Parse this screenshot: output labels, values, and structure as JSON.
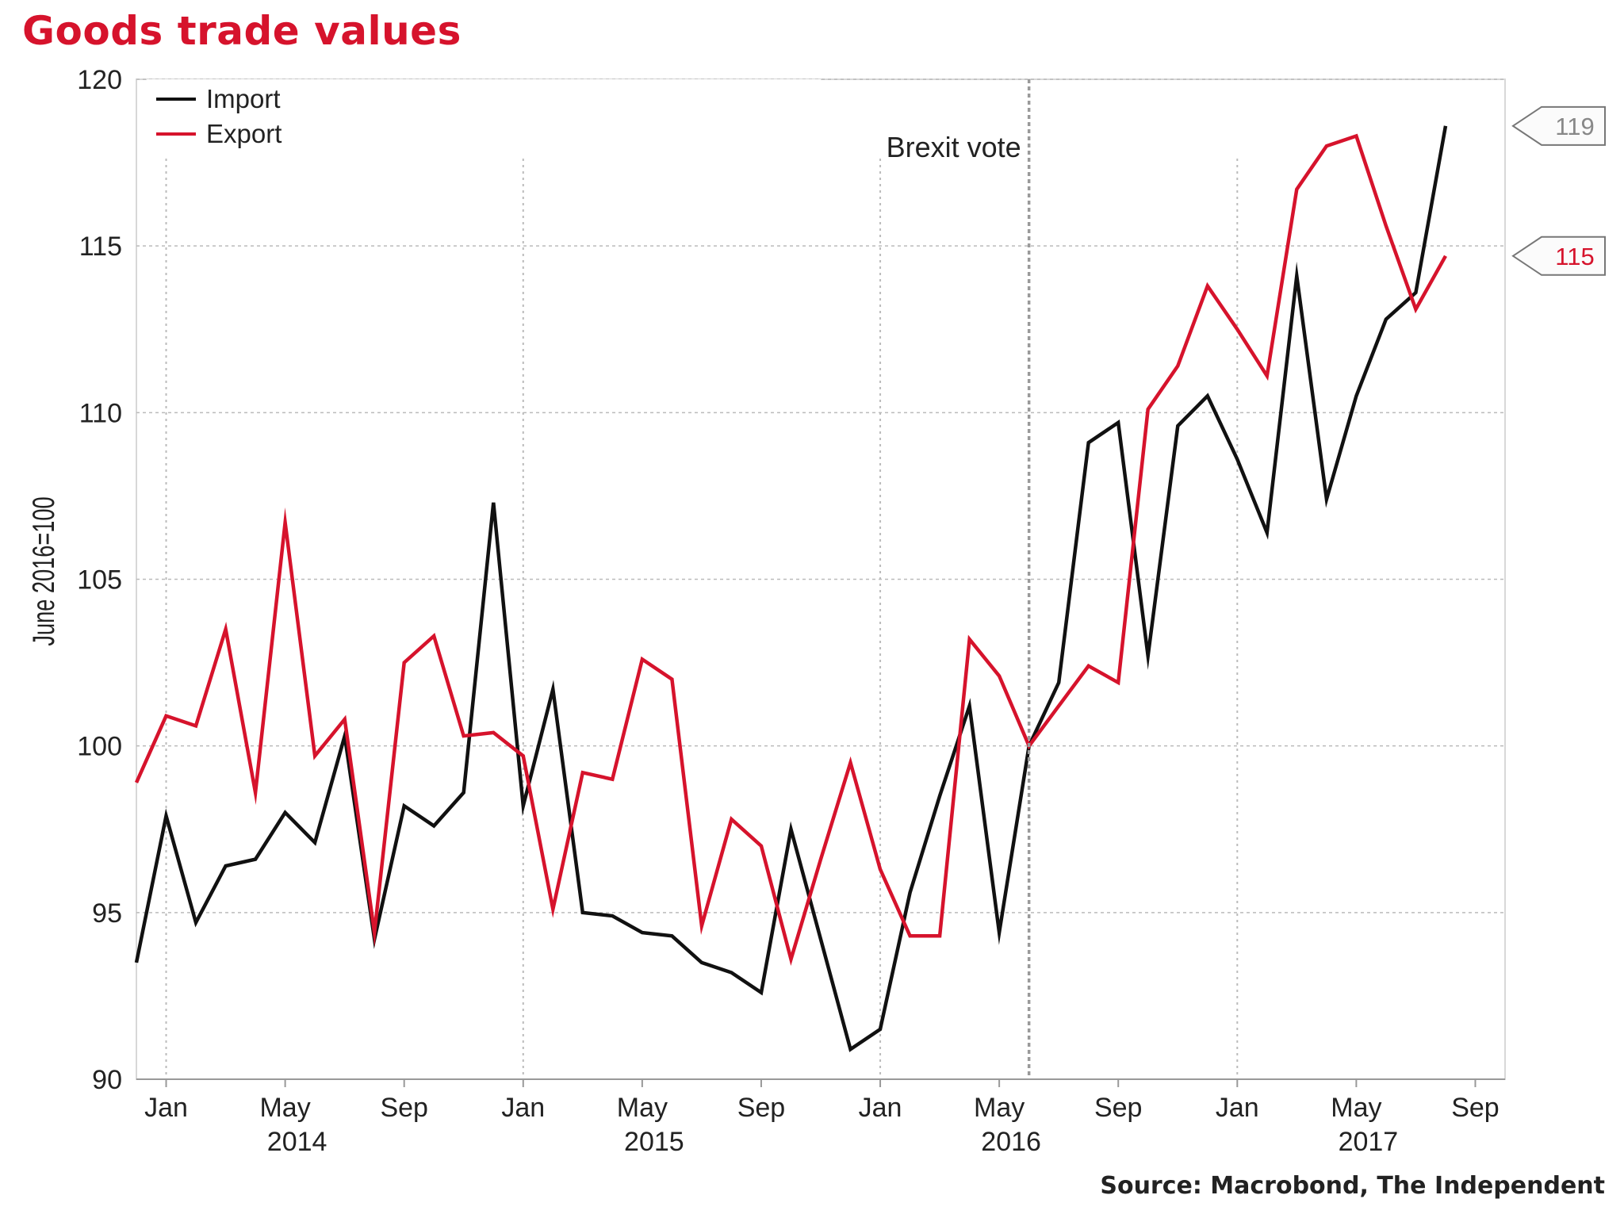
{
  "title": "Goods trade values",
  "source": "Source: Macrobond, The Independent",
  "colors": {
    "title": "#d6132c",
    "import": "#111111",
    "export": "#d6132c",
    "grid": "#bbbbbb",
    "end_label_import": "#888888"
  },
  "chart_data": {
    "type": "line",
    "ylabel": "June 2016=100",
    "ylim": [
      90,
      120
    ],
    "yticks": [
      90,
      95,
      100,
      105,
      110,
      115,
      120
    ],
    "x_range": [
      "2013-12",
      "2017-10"
    ],
    "xticks": [
      {
        "date": "2014-01",
        "label": "Jan"
      },
      {
        "date": "2014-05",
        "label": "May"
      },
      {
        "date": "2014-09",
        "label": "Sep"
      },
      {
        "date": "2015-01",
        "label": "Jan"
      },
      {
        "date": "2015-05",
        "label": "May"
      },
      {
        "date": "2015-09",
        "label": "Sep"
      },
      {
        "date": "2016-01",
        "label": "Jan"
      },
      {
        "date": "2016-05",
        "label": "May"
      },
      {
        "date": "2016-09",
        "label": "Sep"
      },
      {
        "date": "2017-01",
        "label": "Jan"
      },
      {
        "date": "2017-05",
        "label": "May"
      },
      {
        "date": "2017-09",
        "label": "Sep"
      }
    ],
    "year_labels": [
      {
        "date": "2014-05",
        "label": "2014"
      },
      {
        "date": "2015-05",
        "label": "2015"
      },
      {
        "date": "2016-05",
        "label": "2016"
      },
      {
        "date": "2017-05",
        "label": "2017"
      }
    ],
    "grid": true,
    "legend_position": "top-left",
    "x": [
      "2013-12",
      "2014-01",
      "2014-02",
      "2014-03",
      "2014-04",
      "2014-05",
      "2014-06",
      "2014-07",
      "2014-08",
      "2014-09",
      "2014-10",
      "2014-11",
      "2014-12",
      "2015-01",
      "2015-02",
      "2015-03",
      "2015-04",
      "2015-05",
      "2015-06",
      "2015-07",
      "2015-08",
      "2015-09",
      "2015-10",
      "2015-11",
      "2015-12",
      "2016-01",
      "2016-02",
      "2016-03",
      "2016-04",
      "2016-05",
      "2016-06",
      "2016-07",
      "2016-08",
      "2016-09",
      "2016-10",
      "2016-11",
      "2016-12",
      "2017-01",
      "2017-02",
      "2017-03",
      "2017-04",
      "2017-05",
      "2017-06",
      "2017-07",
      "2017-08"
    ],
    "series": [
      {
        "name": "Import",
        "values": [
          93.5,
          97.9,
          94.7,
          96.4,
          96.6,
          98.0,
          97.1,
          100.3,
          94.2,
          98.2,
          97.6,
          98.6,
          107.3,
          98.2,
          101.7,
          95.0,
          94.9,
          94.4,
          94.3,
          93.5,
          93.2,
          92.6,
          97.5,
          94.2,
          90.9,
          91.5,
          95.6,
          98.5,
          101.2,
          94.4,
          100.0,
          101.9,
          109.1,
          109.7,
          102.7,
          109.6,
          110.5,
          108.6,
          106.4,
          114.1,
          107.4,
          110.5,
          112.8,
          113.6,
          118.6
        ],
        "end_label": "119"
      },
      {
        "name": "Export",
        "values": [
          98.9,
          100.9,
          100.6,
          103.5,
          98.6,
          106.7,
          99.7,
          100.8,
          94.4,
          102.5,
          103.3,
          100.3,
          100.4,
          99.7,
          95.1,
          99.2,
          99.0,
          102.6,
          102.0,
          94.6,
          97.8,
          97.0,
          93.6,
          96.6,
          99.5,
          96.3,
          94.3,
          94.3,
          103.2,
          102.1,
          100.0,
          101.2,
          102.4,
          101.9,
          110.1,
          111.4,
          113.8,
          112.5,
          111.1,
          116.7,
          118.0,
          118.3,
          115.6,
          113.1,
          114.7
        ],
        "end_label": "115"
      }
    ],
    "annotations": [
      {
        "text": "Brexit vote",
        "date": "2016-06"
      }
    ]
  }
}
